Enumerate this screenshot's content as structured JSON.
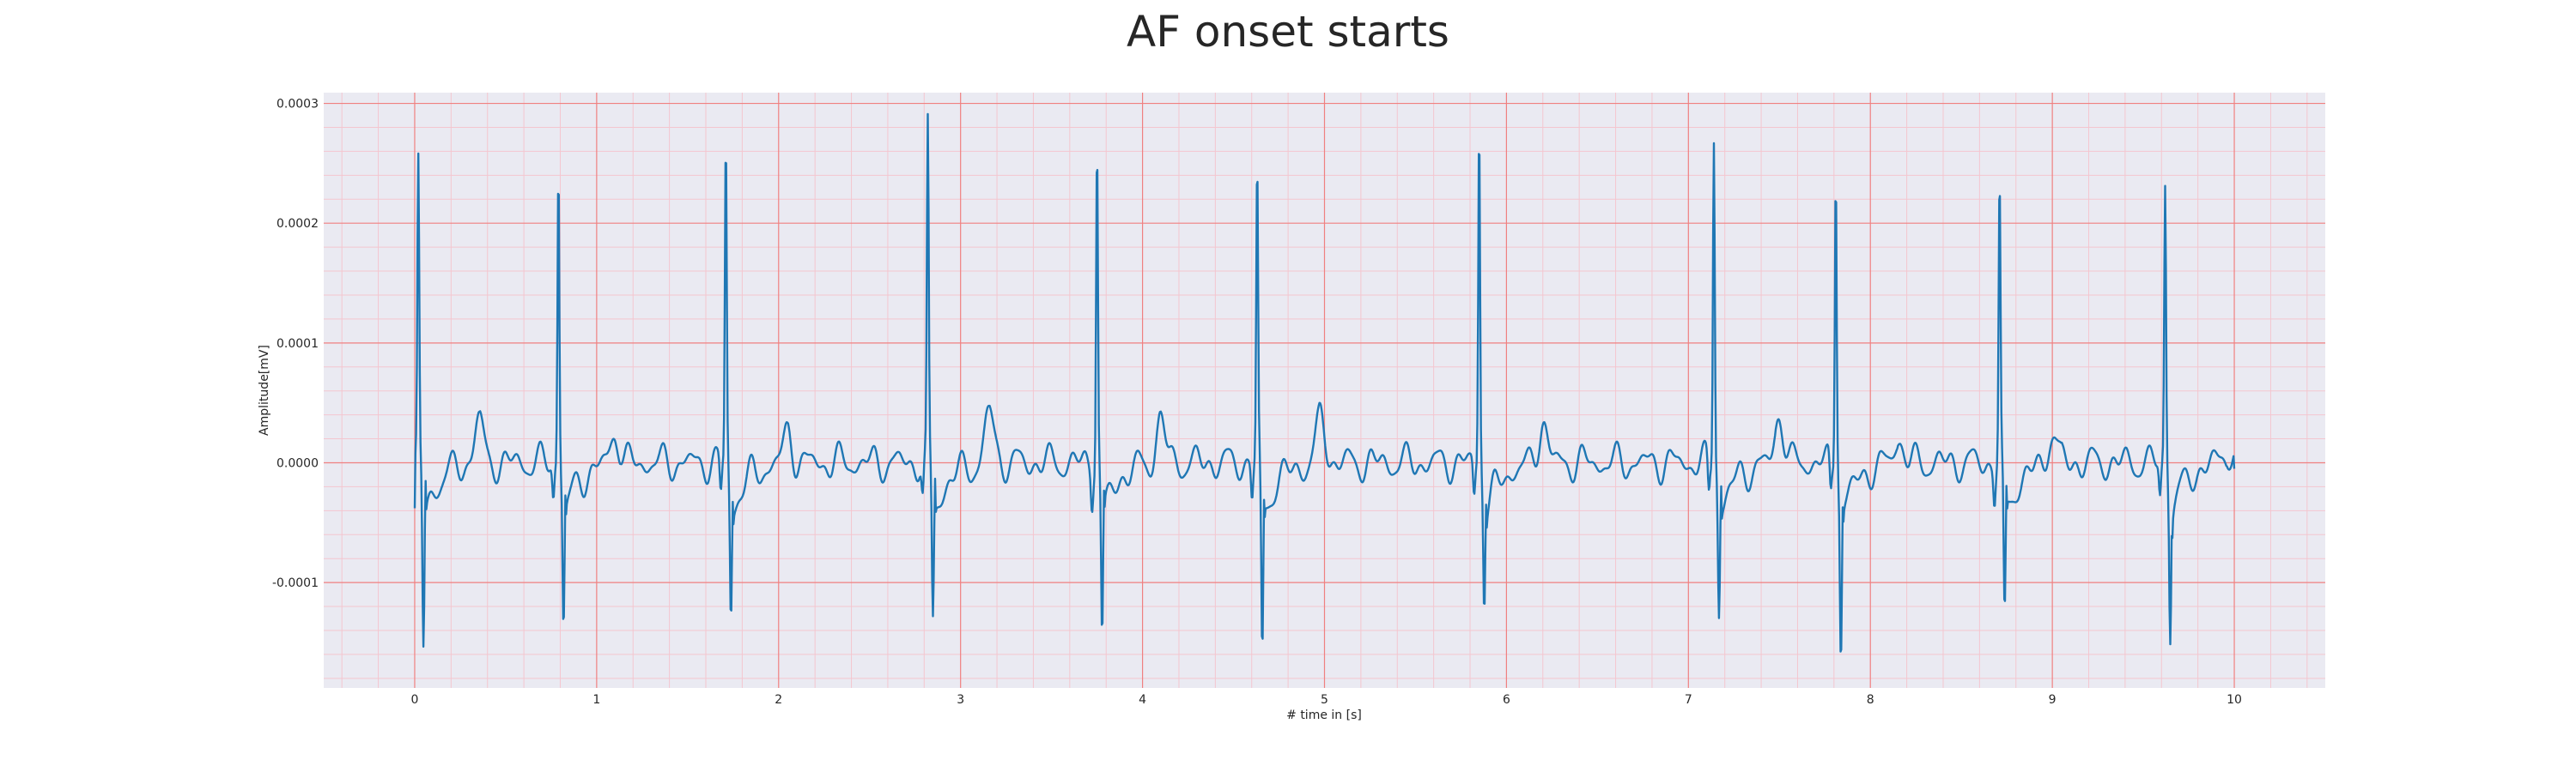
{
  "chart_data": {
    "type": "line",
    "title": "AF onset starts",
    "xlabel": "# time in [s]",
    "ylabel": "Amplitude[mV]",
    "xlim": [
      -0.5,
      10.5
    ],
    "ylim": [
      -0.000188,
      0.000309
    ],
    "x_ticks": [
      0,
      1,
      2,
      3,
      4,
      5,
      6,
      7,
      8,
      9,
      10
    ],
    "x_tick_labels": [
      "0",
      "1",
      "2",
      "3",
      "4",
      "5",
      "6",
      "7",
      "8",
      "9",
      "10"
    ],
    "y_ticks": [
      -0.0001,
      0.0,
      0.0001,
      0.0002,
      0.0003
    ],
    "y_tick_labels": [
      "-0.0001",
      "0.0000",
      "0.0001",
      "0.0002",
      "0.0003"
    ],
    "grid": true,
    "minor_grid": true,
    "colors": {
      "line": "#1f77b4",
      "major_grid": "#f08080",
      "minor_grid": "#f4c6cf",
      "background": "#eaeaf2"
    },
    "r_peaks": [
      {
        "t": 0.02,
        "r": 0.000246,
        "s": -0.000154
      },
      {
        "t": 0.79,
        "r": 0.000251,
        "s": -0.000135
      },
      {
        "t": 1.71,
        "r": 0.000269,
        "s": -0.000126
      },
      {
        "t": 2.82,
        "r": 0.000277,
        "s": -0.000132
      },
      {
        "t": 3.75,
        "r": 0.000273,
        "s": -0.000148
      },
      {
        "t": 4.63,
        "r": 0.000244,
        "s": -0.000165
      },
      {
        "t": 5.85,
        "r": 0.000286,
        "s": -0.000112
      },
      {
        "t": 7.14,
        "r": 0.000275,
        "s": -0.000123
      },
      {
        "t": 7.81,
        "r": 0.000252,
        "s": -0.000159
      },
      {
        "t": 8.71,
        "r": 0.000233,
        "s": -0.000137
      },
      {
        "t": 9.62,
        "r": 0.000234,
        "s": -0.000139
      }
    ],
    "t_waves": [
      {
        "t": 0.35,
        "v": 3.7e-05
      },
      {
        "t": 1.1,
        "v": 2.7e-05
      },
      {
        "t": 2.05,
        "v": 2.6e-05
      },
      {
        "t": 3.16,
        "v": 4.4e-05
      },
      {
        "t": 4.1,
        "v": 3.7e-05
      },
      {
        "t": 4.98,
        "v": 3.8e-05
      },
      {
        "t": 6.2,
        "v": 3.5e-05
      },
      {
        "t": 7.5,
        "v": 4e-05
      },
      {
        "t": 8.15,
        "v": 2.1e-05
      },
      {
        "t": 9.0,
        "v": 2.7e-05
      },
      {
        "t": 9.95,
        "v": 1.2e-05
      }
    ],
    "baseline_after_s": -4e-05,
    "x_start": 0.0,
    "x_end": 10.0,
    "y_start": -3.8e-05,
    "y_end": -5e-06
  }
}
